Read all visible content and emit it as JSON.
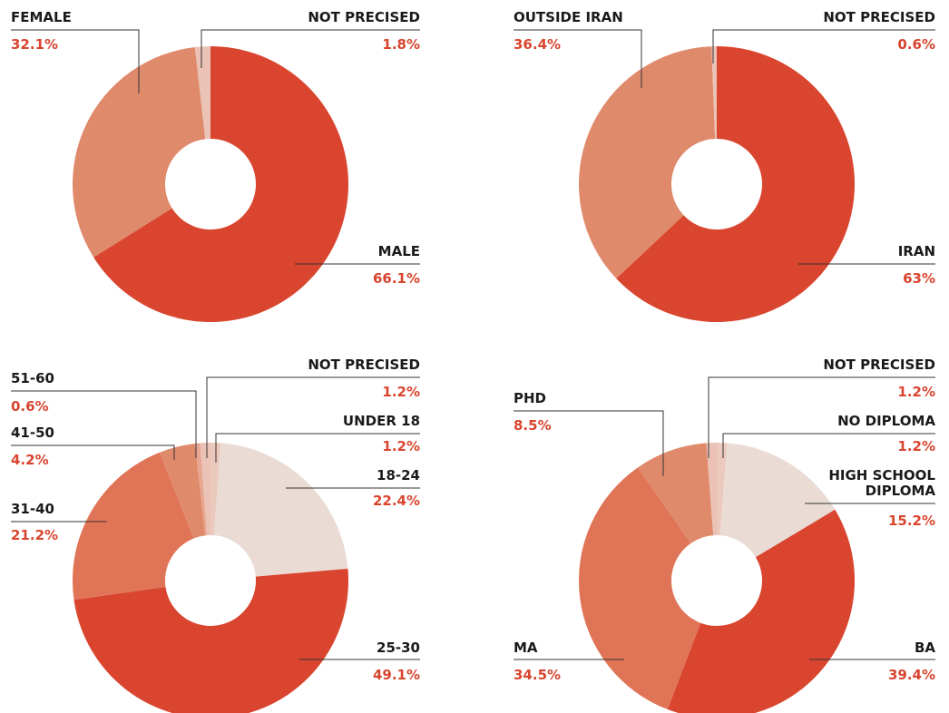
{
  "chart_data": [
    {
      "type": "pie",
      "categories": [
        "MALE",
        "FEMALE",
        "NOT PRECISED"
      ],
      "values": [
        66.1,
        32.1,
        1.8
      ],
      "value_labels": [
        "66.1%",
        "32.1%",
        "1.8%"
      ],
      "colors": [
        "#d9452f",
        "#e08a6c",
        "#ebc3b6"
      ]
    },
    {
      "type": "pie",
      "categories": [
        "IRAN",
        "OUTSIDE IRAN",
        "NOT PRECISED"
      ],
      "values": [
        63,
        36.4,
        0.6
      ],
      "value_labels": [
        "63%",
        "36.4%",
        "0.6%"
      ],
      "colors": [
        "#d9452f",
        "#e08a6c",
        "#ebc3b6"
      ]
    },
    {
      "type": "pie",
      "categories": [
        "UNDER 18",
        "18-24",
        "25-30",
        "31-40",
        "41-50",
        "51-60",
        "NOT PRECISED"
      ],
      "values": [
        1.2,
        22.4,
        49.1,
        21.2,
        4.2,
        0.6,
        1.2
      ],
      "value_labels": [
        "1.2%",
        "22.4%",
        "49.1%",
        "21.2%",
        "4.2%",
        "0.6%",
        "1.2%"
      ],
      "colors": [
        "#ecc9bd",
        "#eadcd5",
        "#d9452f",
        "#e07457",
        "#e08a6c",
        "#e6a690",
        "#ebc3b6"
      ]
    },
    {
      "type": "pie",
      "categories": [
        "NO DIPLOMA",
        "HIGH SCHOOL DIPLOMA",
        "BA",
        "MA",
        "PHD",
        "NOT PRECISED"
      ],
      "values": [
        1.2,
        15.2,
        39.4,
        34.5,
        8.5,
        1.2
      ],
      "value_labels": [
        "1.2%",
        "15.2%",
        "39.4%",
        "34.5%",
        "8.5%",
        "1.2%"
      ],
      "colors": [
        "#ecc9bd",
        "#eadcd5",
        "#d9452f",
        "#e07457",
        "#e08a6c",
        "#ebc3b6"
      ]
    }
  ]
}
